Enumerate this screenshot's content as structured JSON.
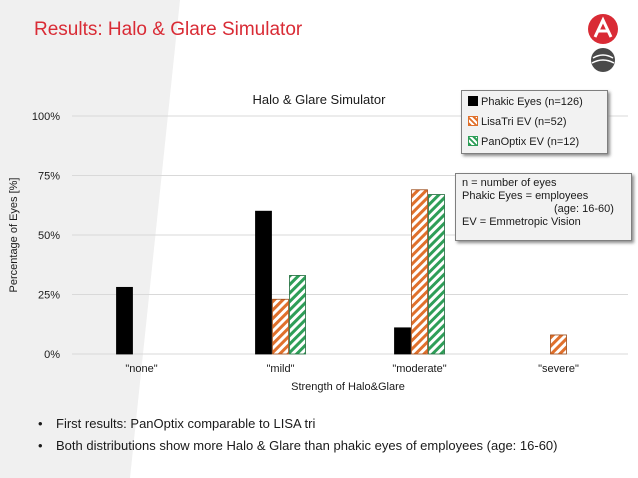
{
  "slide": {
    "title": "Results: Halo & Glare Simulator",
    "bullets": [
      "First results: PanOptix comparable to LISA tri",
      "Both distributions show more Halo & Glare than phakic eyes of employees (age: 16-60)"
    ]
  },
  "note": {
    "lines": [
      "n = number of eyes",
      "Phakic Eyes = employees",
      "(age: 16-60)",
      "EV = Emmetropic Vision"
    ]
  },
  "colors": {
    "accent": "#d92b35",
    "phakic": "#000000",
    "lisatri": "#e0702c",
    "panoptix": "#2e9e58",
    "background_shape": "#f0f0f0"
  },
  "chart_data": {
    "type": "bar",
    "title": "Halo & Glare Simulator",
    "xlabel": "Strength of Halo&Glare",
    "ylabel": "Percentage of Eyes [%]",
    "categories": [
      "\"none\"",
      "\"mild\"",
      "\"moderate\"",
      "\"severe\""
    ],
    "yticks": [
      "0%",
      "25%",
      "50%",
      "75%",
      "100%"
    ],
    "ylim": [
      0,
      100
    ],
    "grid": true,
    "legend_position": "top-right",
    "series": [
      {
        "name": "Phakic Eyes (n=126)",
        "values": [
          28,
          60,
          11,
          0
        ],
        "pattern": "solid"
      },
      {
        "name": "LisaTri EV (n=52)",
        "values": [
          0,
          23,
          69,
          8
        ],
        "pattern": "hatched"
      },
      {
        "name": "PanOptix EV (n=12)",
        "values": [
          0,
          33,
          67,
          0
        ],
        "pattern": "hatched"
      }
    ]
  }
}
